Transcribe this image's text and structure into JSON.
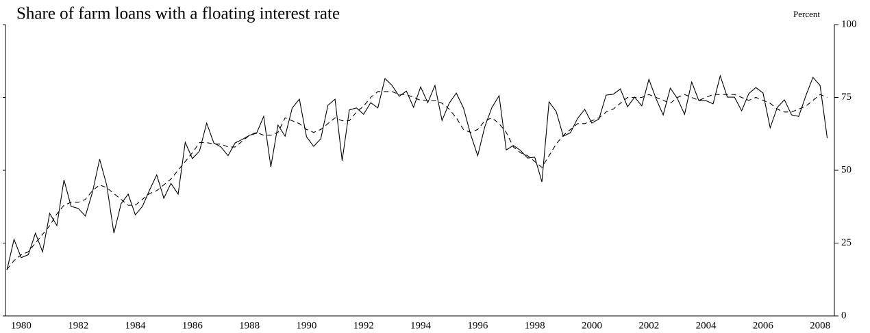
{
  "chart_data": {
    "type": "line",
    "title": "Share of farm loans with a floating interest rate",
    "y_axis_label": "Percent",
    "x": [
      1980,
      1980.25,
      1980.5,
      1980.75,
      1981,
      1981.25,
      1981.5,
      1981.75,
      1982,
      1982.25,
      1982.5,
      1982.75,
      1983,
      1983.25,
      1983.5,
      1983.75,
      1984,
      1984.25,
      1984.5,
      1984.75,
      1985,
      1985.25,
      1985.5,
      1985.75,
      1986,
      1986.25,
      1986.5,
      1986.75,
      1987,
      1987.25,
      1987.5,
      1987.75,
      1988,
      1988.25,
      1988.5,
      1988.75,
      1989,
      1989.25,
      1989.5,
      1989.75,
      1990,
      1990.25,
      1990.5,
      1990.75,
      1991,
      1991.25,
      1991.5,
      1991.75,
      1992,
      1992.25,
      1992.5,
      1992.75,
      1993,
      1993.25,
      1993.5,
      1993.75,
      1994,
      1994.25,
      1994.5,
      1994.75,
      1995,
      1995.25,
      1995.5,
      1995.75,
      1996,
      1996.25,
      1996.5,
      1996.75,
      1997,
      1997.25,
      1997.5,
      1997.75,
      1998,
      1998.25,
      1998.5,
      1998.75,
      1999,
      1999.25,
      1999.5,
      1999.75,
      2000,
      2000.25,
      2000.5,
      2000.75,
      2001,
      2001.25,
      2001.5,
      2001.75,
      2002,
      2002.25,
      2002.5,
      2002.75,
      2003,
      2003.25,
      2003.5,
      2003.75,
      2004,
      2004.25,
      2004.5,
      2004.75,
      2005,
      2005.25,
      2005.5,
      2005.75,
      2006,
      2006.25,
      2006.5,
      2006.75,
      2007,
      2007.25,
      2007.5,
      2007.75,
      2008,
      2008.25,
      2008.5,
      2008.75
    ],
    "series": [
      {
        "color": "#000000",
        "style": "solid",
        "values": [
          15.7,
          26.3,
          20,
          21,
          28.4,
          22,
          35.2,
          31,
          46.7,
          37.6,
          36.9,
          34.3,
          42.5,
          53.8,
          44.8,
          28.4,
          38.5,
          41.8,
          34.7,
          37.6,
          43.2,
          48.4,
          40.4,
          45.5,
          41.8,
          59.6,
          54,
          56.6,
          66.2,
          59.4,
          58,
          55,
          59.4,
          60.6,
          62,
          62.7,
          68.5,
          51.2,
          65.5,
          61.7,
          71.4,
          74.4,
          61.5,
          58.2,
          60.8,
          72.3,
          74.4,
          53.3,
          70.7,
          71.4,
          69.2,
          73.2,
          71.4,
          81.5,
          79.1,
          75.4,
          77.2,
          71.6,
          78.6,
          73.2,
          79.1,
          67.1,
          73,
          76.5,
          71.4,
          62.4,
          55,
          65,
          71.6,
          75.6,
          57,
          58.5,
          56.8,
          54.2,
          54.5,
          46,
          73.5,
          70.2,
          61.7,
          62.9,
          67.8,
          70.9,
          66.2,
          67.6,
          75.8,
          76.1,
          77.9,
          71.8,
          75.1,
          72.1,
          81.2,
          74.6,
          69,
          78.2,
          74.6,
          69.2,
          80.3,
          73.9,
          73.9,
          72.8,
          82.4,
          75.1,
          75.1,
          70.4,
          76.3,
          78.4,
          76.5,
          64.6,
          71.6,
          74.2,
          69,
          68.5,
          75.6,
          81.9,
          79.1,
          61
        ]
      },
      {
        "color": "#000000",
        "style": "dashed",
        "values": [
          16,
          19,
          21,
          22,
          25,
          28,
          31,
          35,
          38,
          39,
          39,
          40,
          43,
          45,
          44,
          42,
          40,
          38,
          38,
          40,
          42,
          43,
          45,
          47,
          50,
          53,
          56,
          59.5,
          59.5,
          59,
          59,
          58,
          58,
          60,
          62,
          63,
          62,
          62,
          63,
          68,
          67,
          66,
          64,
          63,
          64,
          66,
          68,
          67,
          67,
          70,
          72,
          75,
          77,
          77,
          77,
          76,
          76,
          75,
          74,
          74,
          74,
          73,
          71,
          68,
          64,
          63,
          64,
          67,
          68,
          66,
          63,
          58,
          56,
          55,
          53,
          51,
          55,
          59,
          62,
          64,
          66,
          66,
          67,
          68,
          70,
          71,
          73,
          75,
          75,
          75,
          76,
          75,
          74,
          73,
          75,
          76,
          75,
          74,
          75,
          76,
          76,
          76,
          76,
          75,
          74,
          75,
          74,
          73,
          71,
          70,
          70,
          71,
          72,
          74,
          76,
          75
        ]
      }
    ],
    "xlim": [
      1979.95,
      2009.0
    ],
    "xticks": [
      {
        "value": 1980.5,
        "label": "1980"
      },
      {
        "value": 1982.5,
        "label": "1982"
      },
      {
        "value": 1984.5,
        "label": "1984"
      },
      {
        "value": 1986.5,
        "label": "1986"
      },
      {
        "value": 1988.5,
        "label": "1988"
      },
      {
        "value": 1990.5,
        "label": "1990"
      },
      {
        "value": 1992.5,
        "label": "1992"
      },
      {
        "value": 1994.5,
        "label": "1994"
      },
      {
        "value": 1996.5,
        "label": "1996"
      },
      {
        "value": 1998.5,
        "label": "1998"
      },
      {
        "value": 2000.5,
        "label": "2000"
      },
      {
        "value": 2002.5,
        "label": "2002"
      },
      {
        "value": 2004.5,
        "label": "2004"
      },
      {
        "value": 2006.5,
        "label": "2006"
      },
      {
        "value": 2008.5,
        "label": "2008"
      }
    ],
    "ylim": [
      0,
      100
    ],
    "yticks": [
      0,
      25,
      50,
      75,
      100
    ],
    "grid": false
  }
}
